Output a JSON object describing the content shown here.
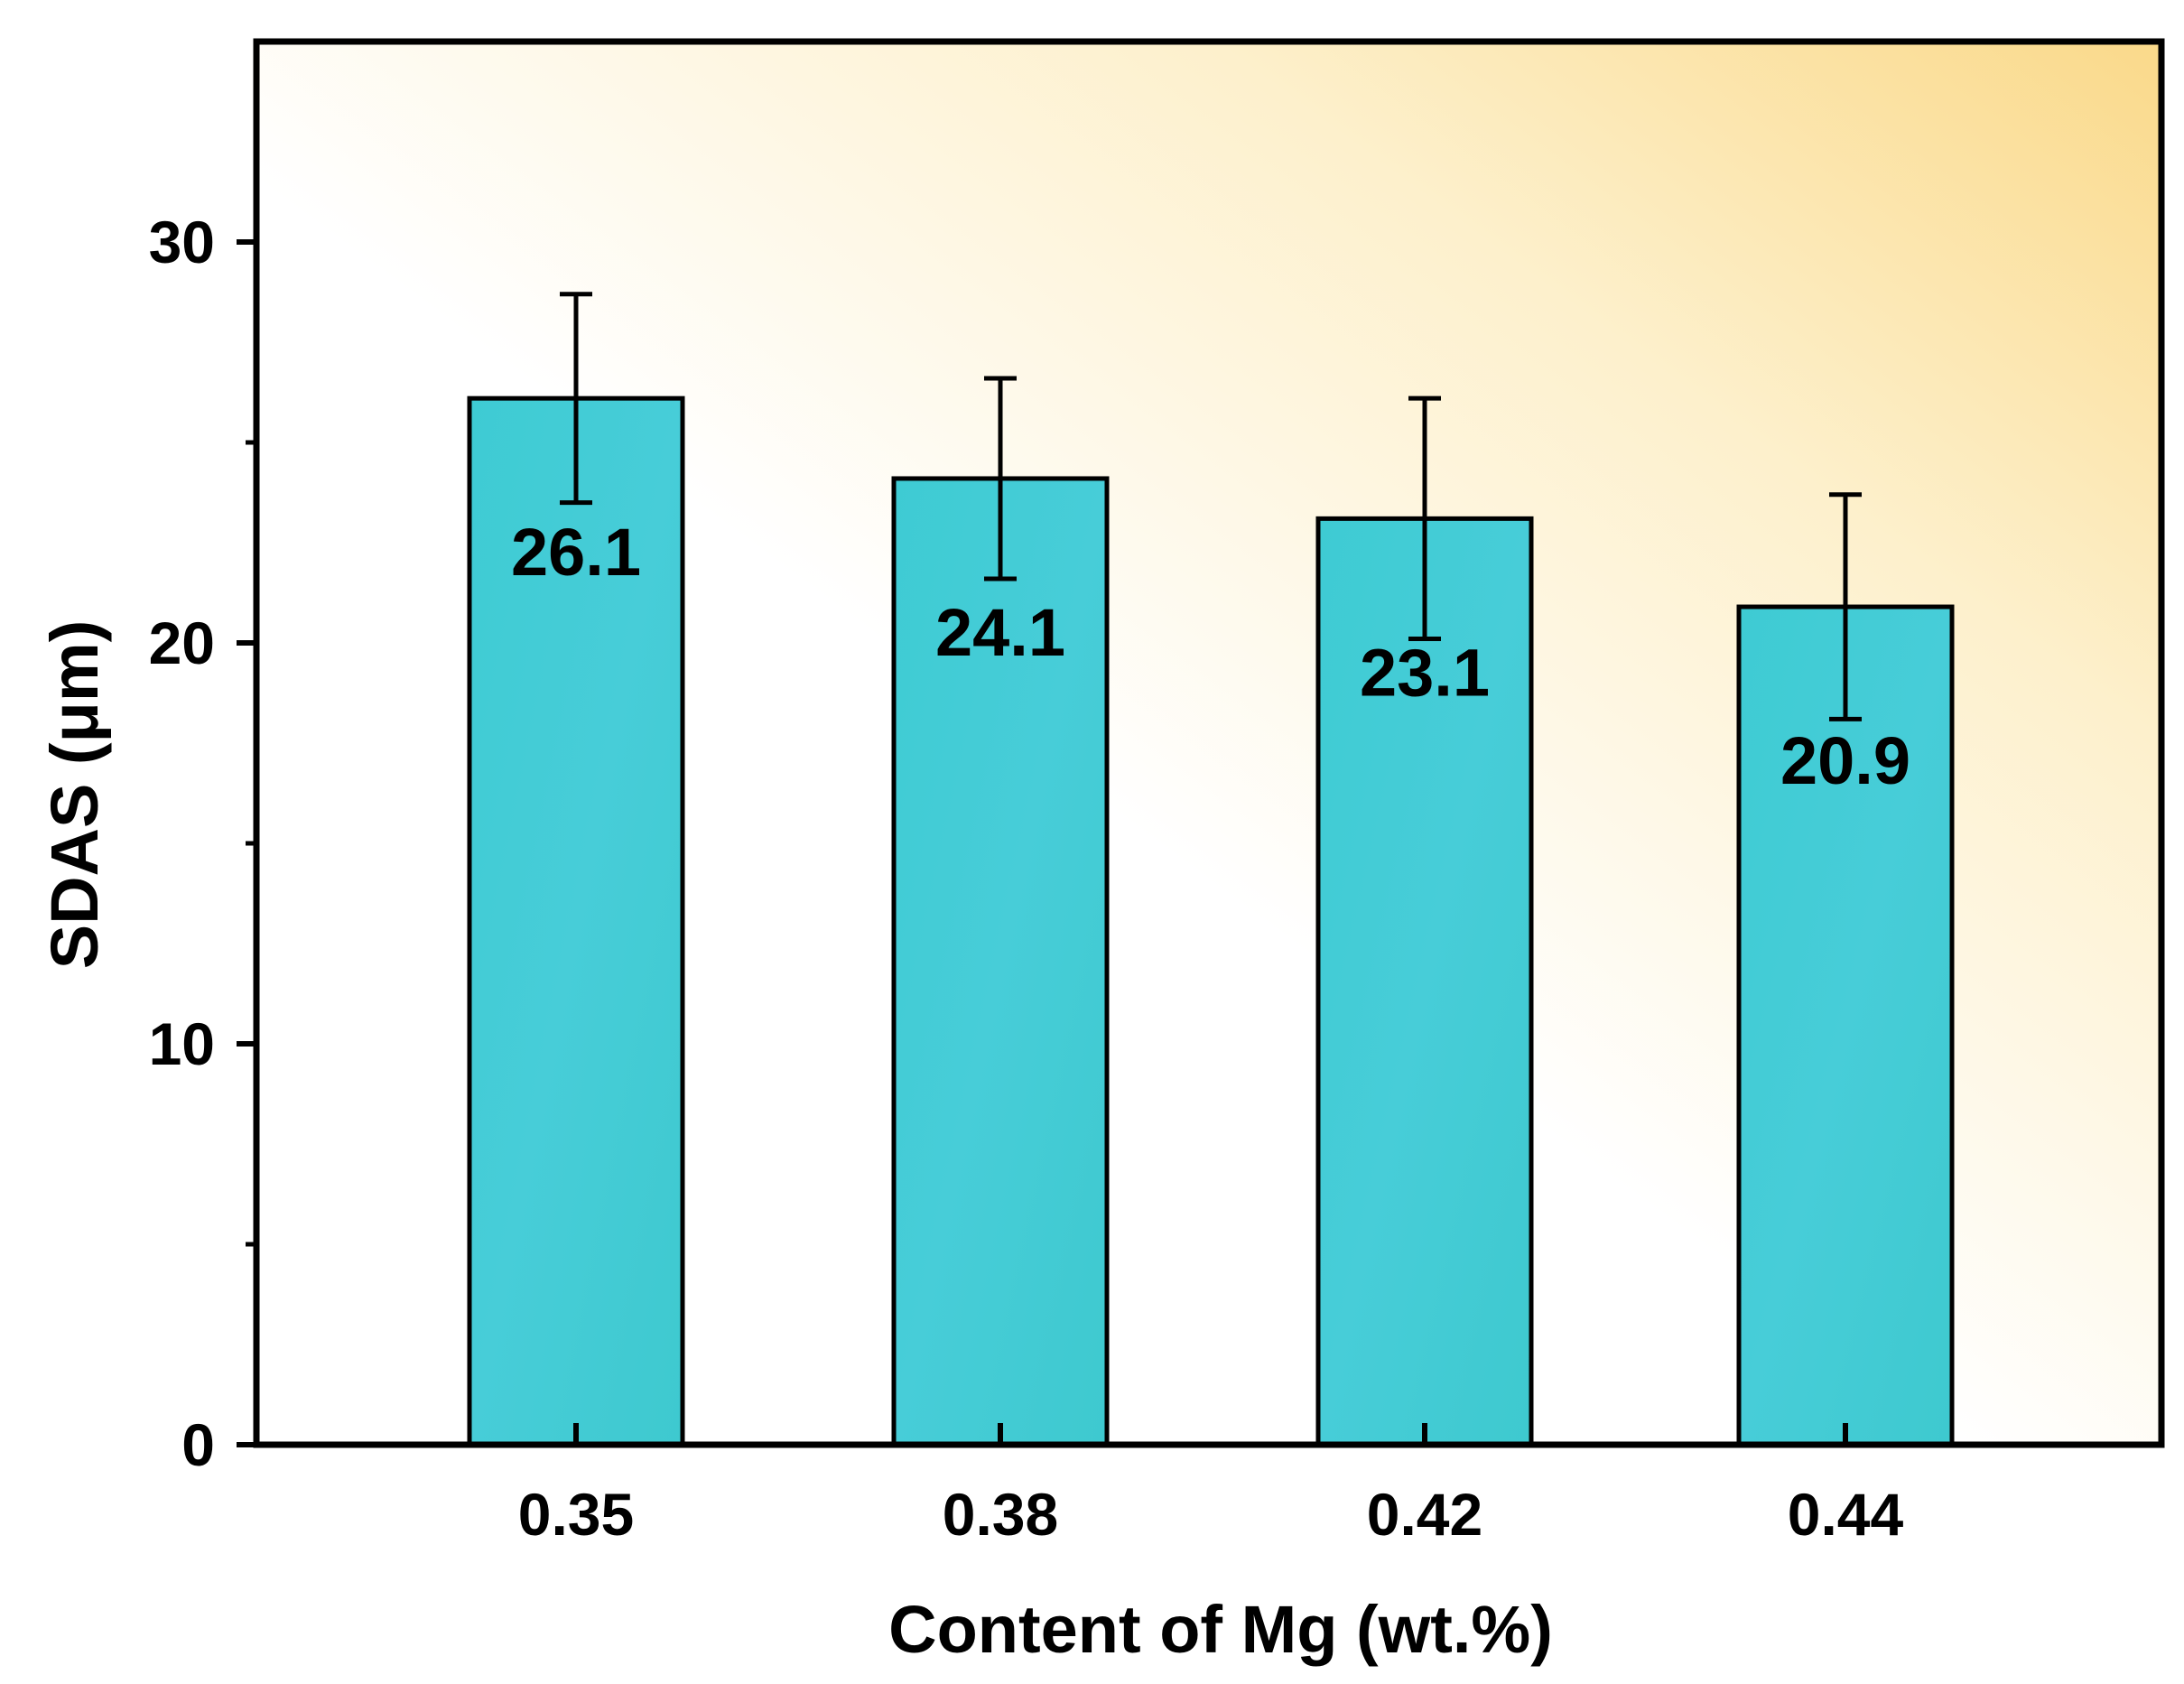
{
  "colors": {
    "bar_fill": "#3ECBD3",
    "bar_stroke": "#000000",
    "bg_light": "#FFFFFF",
    "bg_warm": "#FAD98A",
    "axis": "#000000"
  },
  "chart_data": {
    "type": "bar",
    "title": "",
    "xlabel": "Content of Mg (wt.%)",
    "ylabel": "SDAS (μm)",
    "categories": [
      "0.35",
      "0.38",
      "0.42",
      "0.44"
    ],
    "values": [
      26.1,
      24.1,
      23.1,
      20.9
    ],
    "value_labels": [
      "26.1",
      "24.1",
      "23.1",
      "20.9"
    ],
    "errors": [
      {
        "low": 23.5,
        "high": 28.7
      },
      {
        "low": 21.6,
        "high": 26.6
      },
      {
        "low": 20.1,
        "high": 26.1
      },
      {
        "low": 18.1,
        "high": 23.7
      }
    ],
    "ylim": [
      0,
      35
    ],
    "yticks": [
      0,
      10,
      20,
      30
    ],
    "ytick_labels": [
      "0",
      "10",
      "20",
      "30"
    ],
    "yminor_ticks": [
      5,
      15,
      25
    ],
    "grid": false,
    "legend": "none"
  }
}
